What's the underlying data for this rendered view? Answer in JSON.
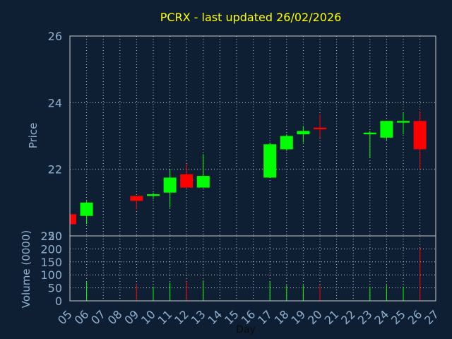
{
  "chart_data": {
    "type": "candlestick",
    "title": "PCRX - last updated 26/02/2026",
    "xlabel": "Day",
    "price_panel": {
      "ylabel": "Price",
      "ylim": [
        20,
        26
      ],
      "yticks": [
        "20",
        "22",
        "24",
        "26"
      ],
      "grid": true
    },
    "volume_panel": {
      "ylabel": "Volume (0000)",
      "ylim": [
        0,
        250
      ],
      "yticks": [
        "0",
        "50",
        "100",
        "150",
        "200",
        "250"
      ],
      "grid": true
    },
    "x_ticks": [
      "05",
      "06",
      "07",
      "08",
      "09",
      "10",
      "11",
      "12",
      "13",
      "14",
      "15",
      "16",
      "17",
      "18",
      "19",
      "20",
      "21",
      "22",
      "23",
      "24",
      "25",
      "26",
      "27"
    ],
    "up_color": "#00ff00",
    "down_color": "#ff0000",
    "candles": [
      {
        "day": "05",
        "open": 20.65,
        "high": 20.65,
        "low": 20.35,
        "close": 20.35,
        "volume": 0
      },
      {
        "day": "06",
        "open": 20.6,
        "high": 21.05,
        "low": 20.35,
        "close": 21.0,
        "volume": 75
      },
      {
        "day": "09",
        "open": 21.2,
        "high": 21.2,
        "low": 20.8,
        "close": 21.05,
        "volume": 65
      },
      {
        "day": "10",
        "open": 21.2,
        "high": 21.3,
        "low": 21.1,
        "close": 21.25,
        "volume": 55
      },
      {
        "day": "11",
        "open": 21.3,
        "high": 22.0,
        "low": 20.85,
        "close": 21.75,
        "volume": 70
      },
      {
        "day": "12",
        "open": 21.85,
        "high": 22.15,
        "low": 21.45,
        "close": 21.45,
        "volume": 75
      },
      {
        "day": "13",
        "open": 21.45,
        "high": 22.45,
        "low": 21.45,
        "close": 21.8,
        "volume": 78
      },
      {
        "day": "17",
        "open": 21.75,
        "high": 22.8,
        "low": 21.75,
        "close": 22.75,
        "volume": 75
      },
      {
        "day": "18",
        "open": 22.6,
        "high": 23.05,
        "low": 22.55,
        "close": 23.0,
        "volume": 60
      },
      {
        "day": "19",
        "open": 23.05,
        "high": 23.3,
        "low": 22.8,
        "close": 23.15,
        "volume": 60
      },
      {
        "day": "20",
        "open": 23.25,
        "high": 23.65,
        "low": 22.95,
        "close": 23.2,
        "volume": 60
      },
      {
        "day": "23",
        "open": 23.05,
        "high": 23.15,
        "low": 22.35,
        "close": 23.1,
        "volume": 55
      },
      {
        "day": "24",
        "open": 22.95,
        "high": 23.45,
        "low": 22.85,
        "close": 23.45,
        "volume": 60
      },
      {
        "day": "25",
        "open": 23.4,
        "high": 23.7,
        "low": 23.05,
        "close": 23.45,
        "volume": 55
      },
      {
        "day": "26",
        "open": 23.45,
        "high": 23.75,
        "low": 22.0,
        "close": 22.6,
        "volume": 205
      }
    ]
  }
}
